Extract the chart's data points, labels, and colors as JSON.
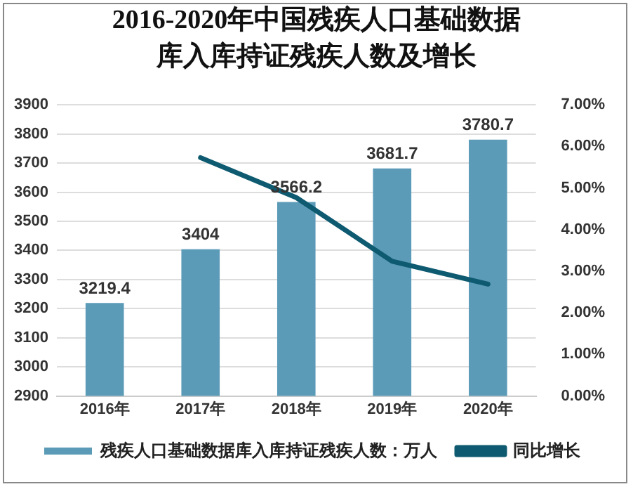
{
  "chart_data": {
    "type": "bar",
    "title": "2016-2020年中国残疾人口基础数据库入库持证残疾人数及增长",
    "categories": [
      "2016年",
      "2017年",
      "2018年",
      "2019年",
      "2020年"
    ],
    "series": [
      {
        "name": "残疾人口基础数据库入库持证残疾人数：万人",
        "color": "#5b9bb8",
        "values": [
          3219.4,
          3404,
          3566.2,
          3681.7,
          3780.7
        ],
        "value_labels": [
          "3219.4",
          "3404",
          "3566.2",
          "3681.7",
          "3780.7"
        ]
      },
      {
        "name": "同比增长",
        "type": "line",
        "axis": "y2",
        "color": "#0e5a70",
        "values": [
          null,
          5.73,
          4.77,
          3.24,
          2.69
        ]
      }
    ],
    "ylim": [
      2900,
      3900
    ],
    "yticks": [
      2900,
      3000,
      3100,
      3200,
      3300,
      3400,
      3500,
      3600,
      3700,
      3800,
      3900
    ],
    "y2lim": [
      0,
      7
    ],
    "y2ticks": [
      {
        "value": 0,
        "label": "0.00%"
      },
      {
        "value": 1,
        "label": "1.00%"
      },
      {
        "value": 2,
        "label": "2.00%"
      },
      {
        "value": 3,
        "label": "3.00%"
      },
      {
        "value": 4,
        "label": "4.00%"
      },
      {
        "value": 5,
        "label": "5.00%"
      },
      {
        "value": 6,
        "label": "6.00%"
      },
      {
        "value": 7,
        "label": "7.00%"
      }
    ],
    "grid": "y",
    "legend": "bottom",
    "marker": "none"
  }
}
